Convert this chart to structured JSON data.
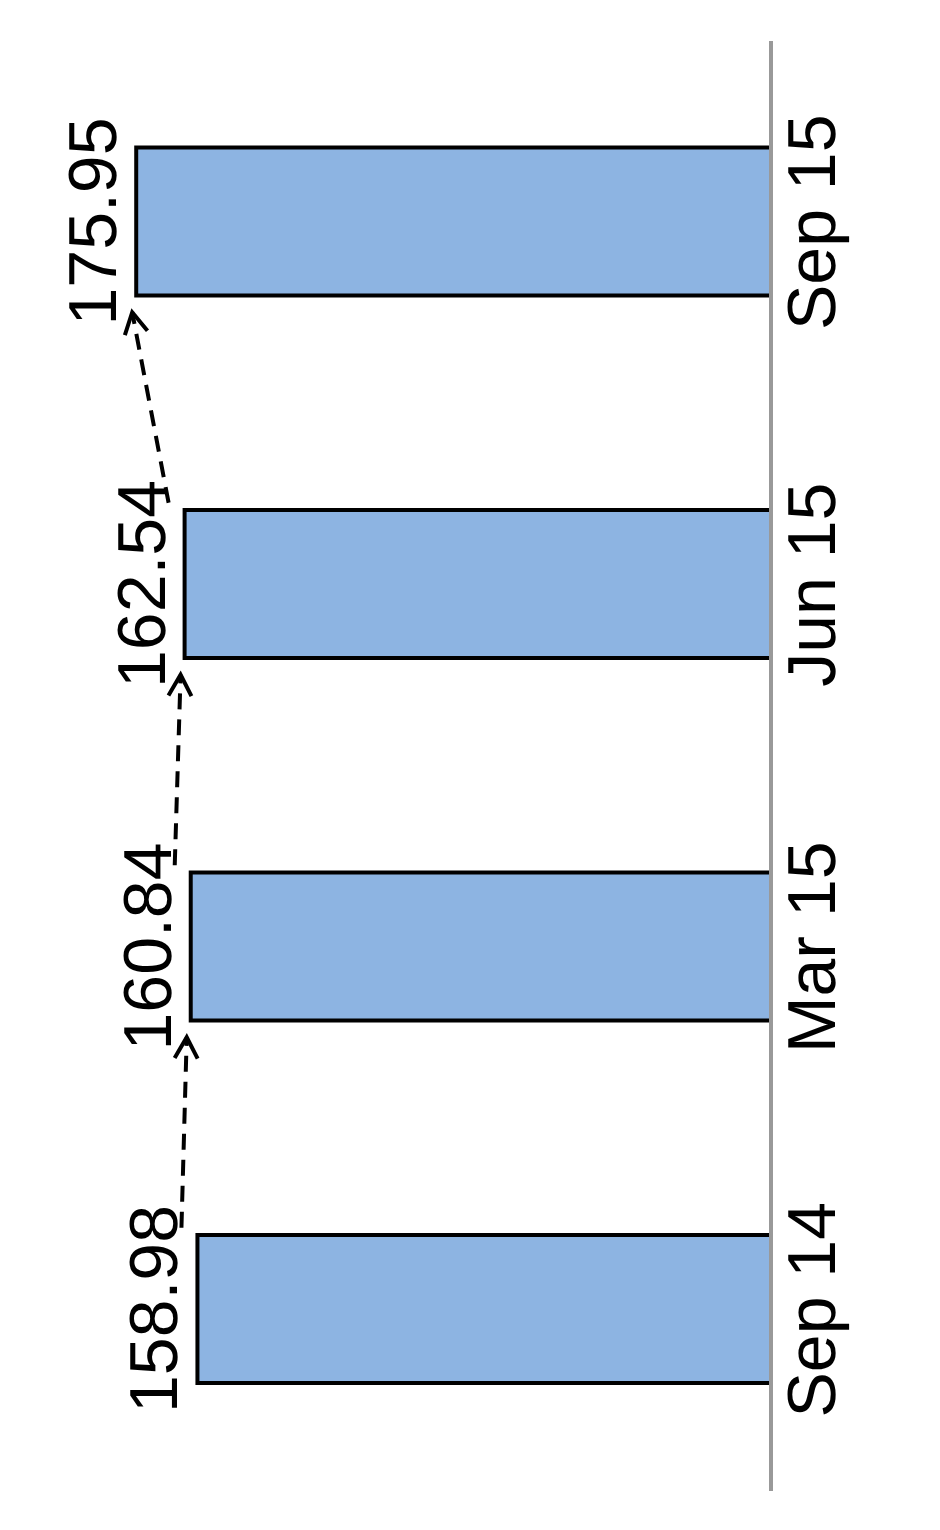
{
  "chart_data": {
    "type": "bar",
    "orientation": "horizontal",
    "categories": [
      "Sep 15",
      "Jun 15",
      "Mar 15",
      "Sep 14"
    ],
    "values": [
      175.95,
      162.54,
      160.84,
      158.98
    ],
    "color": "#8db4e2",
    "data_labels": true
  }
}
